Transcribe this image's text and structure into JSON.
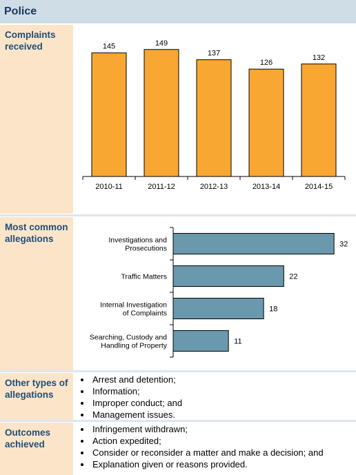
{
  "header": {
    "title": "Police"
  },
  "sections": {
    "complaints": {
      "label": "Complaints received"
    },
    "allegations": {
      "label": "Most common allegations"
    },
    "other": {
      "label": "Other types of allegations",
      "items": [
        "Arrest and detention;",
        "Information;",
        "Improper conduct; and",
        "Management issues."
      ]
    },
    "outcomes": {
      "label": "Outcomes achieved",
      "items": [
        "Infringement withdrawn;",
        "Action expedited;",
        "Consider or reconsider a matter and make a decision; and",
        "Explanation given or reasons provided."
      ]
    }
  },
  "chart_data": [
    {
      "type": "bar",
      "orientation": "vertical",
      "categories": [
        "2010-11",
        "2011-12",
        "2012-13",
        "2013-14",
        "2014-15"
      ],
      "values": [
        145,
        149,
        137,
        126,
        132
      ],
      "ylim": [
        0,
        165
      ],
      "color": "#f9a733",
      "data_labels": true,
      "grid": false
    },
    {
      "type": "bar",
      "orientation": "horizontal",
      "categories": [
        [
          "Investigations and",
          "Prosecutions"
        ],
        [
          "Traffic Matters"
        ],
        [
          "Internal Investigation",
          "of Complaints"
        ],
        [
          "Searching, Custody and",
          "Handling of Property"
        ]
      ],
      "values": [
        32,
        22,
        18,
        11
      ],
      "xlim": [
        0,
        35
      ],
      "color": "#6a98ac",
      "data_labels": true,
      "grid": false
    }
  ]
}
